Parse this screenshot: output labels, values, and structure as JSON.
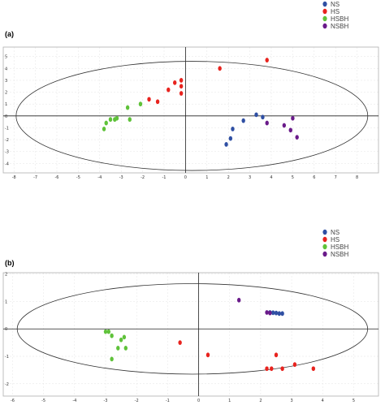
{
  "chart_data": [
    {
      "type": "scatter",
      "panel_label": "(a)",
      "xlim": [
        -8.5,
        9
      ],
      "ylim": [
        -4.8,
        5.8
      ],
      "x_ticks": [
        -8,
        -7,
        -6,
        -5,
        -4,
        -3,
        -2,
        -1,
        0,
        1,
        2,
        3,
        4,
        5,
        6,
        7,
        8
      ],
      "y_ticks": [
        -4,
        -3,
        -2,
        -1,
        0,
        1,
        2,
        3,
        4,
        5
      ],
      "ellipse": {
        "cx": 0.3,
        "cy": 0,
        "rx": 8.2,
        "ry": 4.6
      },
      "grid": true,
      "legend_position": "top-right",
      "series": [
        {
          "name": "NS",
          "color": "#2f4fa3",
          "points": [
            [
              1.9,
              -2.4
            ],
            [
              2.1,
              -1.9
            ],
            [
              2.2,
              -1.1
            ],
            [
              2.7,
              -0.4
            ],
            [
              3.3,
              0.1
            ],
            [
              3.6,
              -0.1
            ]
          ]
        },
        {
          "name": "HS",
          "color": "#e8231e",
          "points": [
            [
              1.6,
              4.0
            ],
            [
              3.8,
              4.7
            ],
            [
              -1.7,
              1.4
            ],
            [
              -1.3,
              1.2
            ],
            [
              -0.8,
              2.2
            ],
            [
              -0.5,
              2.8
            ],
            [
              -0.2,
              2.5
            ],
            [
              -0.2,
              3.0
            ],
            [
              -0.2,
              1.9
            ]
          ]
        },
        {
          "name": "HSBH",
          "color": "#5fc23a",
          "points": [
            [
              -3.8,
              -1.1
            ],
            [
              -3.7,
              -0.6
            ],
            [
              -3.5,
              -0.3
            ],
            [
              -3.3,
              -0.3
            ],
            [
              -3.2,
              -0.2
            ],
            [
              -2.7,
              0.7
            ],
            [
              -2.6,
              -0.3
            ],
            [
              -2.1,
              1.0
            ]
          ]
        },
        {
          "name": "NSBH",
          "color": "#6a1b8a",
          "points": [
            [
              3.8,
              -0.6
            ],
            [
              4.6,
              -0.8
            ],
            [
              4.9,
              -1.2
            ],
            [
              5.0,
              -0.2
            ],
            [
              5.2,
              -1.8
            ]
          ]
        }
      ]
    },
    {
      "type": "scatter",
      "panel_label": "(b)",
      "xlim": [
        -6.3,
        5.8
      ],
      "ylim": [
        -2.45,
        2.05
      ],
      "x_ticks": [
        -6,
        -5,
        -4,
        -3,
        -2,
        -1,
        0,
        1,
        2,
        3,
        4,
        5
      ],
      "y_ticks": [
        -2,
        -1,
        0,
        1,
        2
      ],
      "ellipse": {
        "cx": -0.2,
        "cy": 0,
        "rx": 5.65,
        "ry": 1.65
      },
      "grid": true,
      "legend_position": "top-right",
      "series": [
        {
          "name": "NS",
          "color": "#2f4fa3",
          "points": [
            [
              2.3,
              0.6
            ],
            [
              2.5,
              0.58
            ],
            [
              2.6,
              0.56
            ],
            [
              2.7,
              0.56
            ],
            [
              2.4,
              0.59
            ]
          ]
        },
        {
          "name": "HS",
          "color": "#e8231e",
          "points": [
            [
              -0.6,
              -0.5
            ],
            [
              0.3,
              -0.95
            ],
            [
              2.2,
              -1.45
            ],
            [
              2.35,
              -1.45
            ],
            [
              2.5,
              -0.95
            ],
            [
              2.7,
              -1.45
            ],
            [
              3.1,
              -1.3
            ],
            [
              3.7,
              -1.45
            ]
          ]
        },
        {
          "name": "HSBH",
          "color": "#5fc23a",
          "points": [
            [
              -3.0,
              -0.1
            ],
            [
              -2.9,
              -0.1
            ],
            [
              -2.8,
              -0.25
            ],
            [
              -2.6,
              -0.7
            ],
            [
              -2.5,
              -0.4
            ],
            [
              -2.4,
              -0.3
            ],
            [
              -2.35,
              -0.7
            ],
            [
              -2.8,
              -1.1
            ]
          ]
        },
        {
          "name": "NSBH",
          "color": "#6a1b8a",
          "points": [
            [
              1.3,
              1.05
            ],
            [
              2.2,
              0.6
            ],
            [
              2.3,
              0.58
            ]
          ]
        }
      ]
    }
  ]
}
